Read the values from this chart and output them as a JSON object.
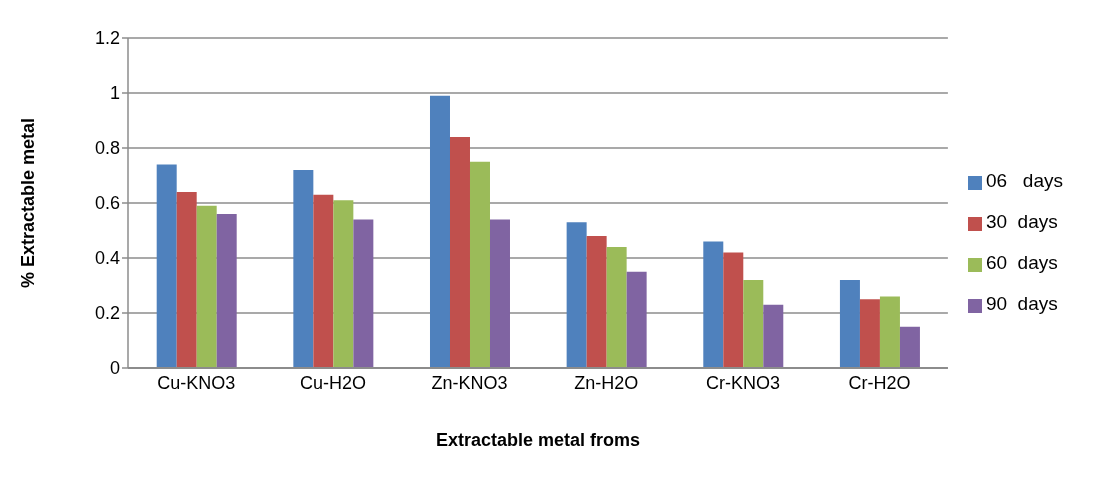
{
  "chart_data": {
    "type": "bar",
    "xlabel": "Extractable metal froms",
    "ylabel": "% Extractable metal",
    "categories": [
      "Cu-KNO3",
      "Cu-H2O",
      "Zn-KNO3",
      "Zn-H2O",
      "Cr-KNO3",
      "Cr-H2O"
    ],
    "series": [
      {
        "name": "06   days",
        "color": "#4f81bd",
        "values": [
          0.74,
          0.72,
          0.99,
          0.53,
          0.46,
          0.32
        ]
      },
      {
        "name": "30  days",
        "color": "#c0504d",
        "values": [
          0.64,
          0.63,
          0.84,
          0.48,
          0.42,
          0.25
        ]
      },
      {
        "name": "60  days",
        "color": "#9bbb59",
        "values": [
          0.59,
          0.61,
          0.75,
          0.44,
          0.32,
          0.26
        ]
      },
      {
        "name": "90  days",
        "color": "#8064a2",
        "values": [
          0.56,
          0.54,
          0.54,
          0.35,
          0.23,
          0.15
        ]
      }
    ],
    "ylim": [
      0,
      1.2
    ],
    "yticks": [
      0,
      0.2,
      0.4,
      0.6,
      0.8,
      1,
      1.2
    ],
    "grid": "y",
    "legend": "right"
  }
}
